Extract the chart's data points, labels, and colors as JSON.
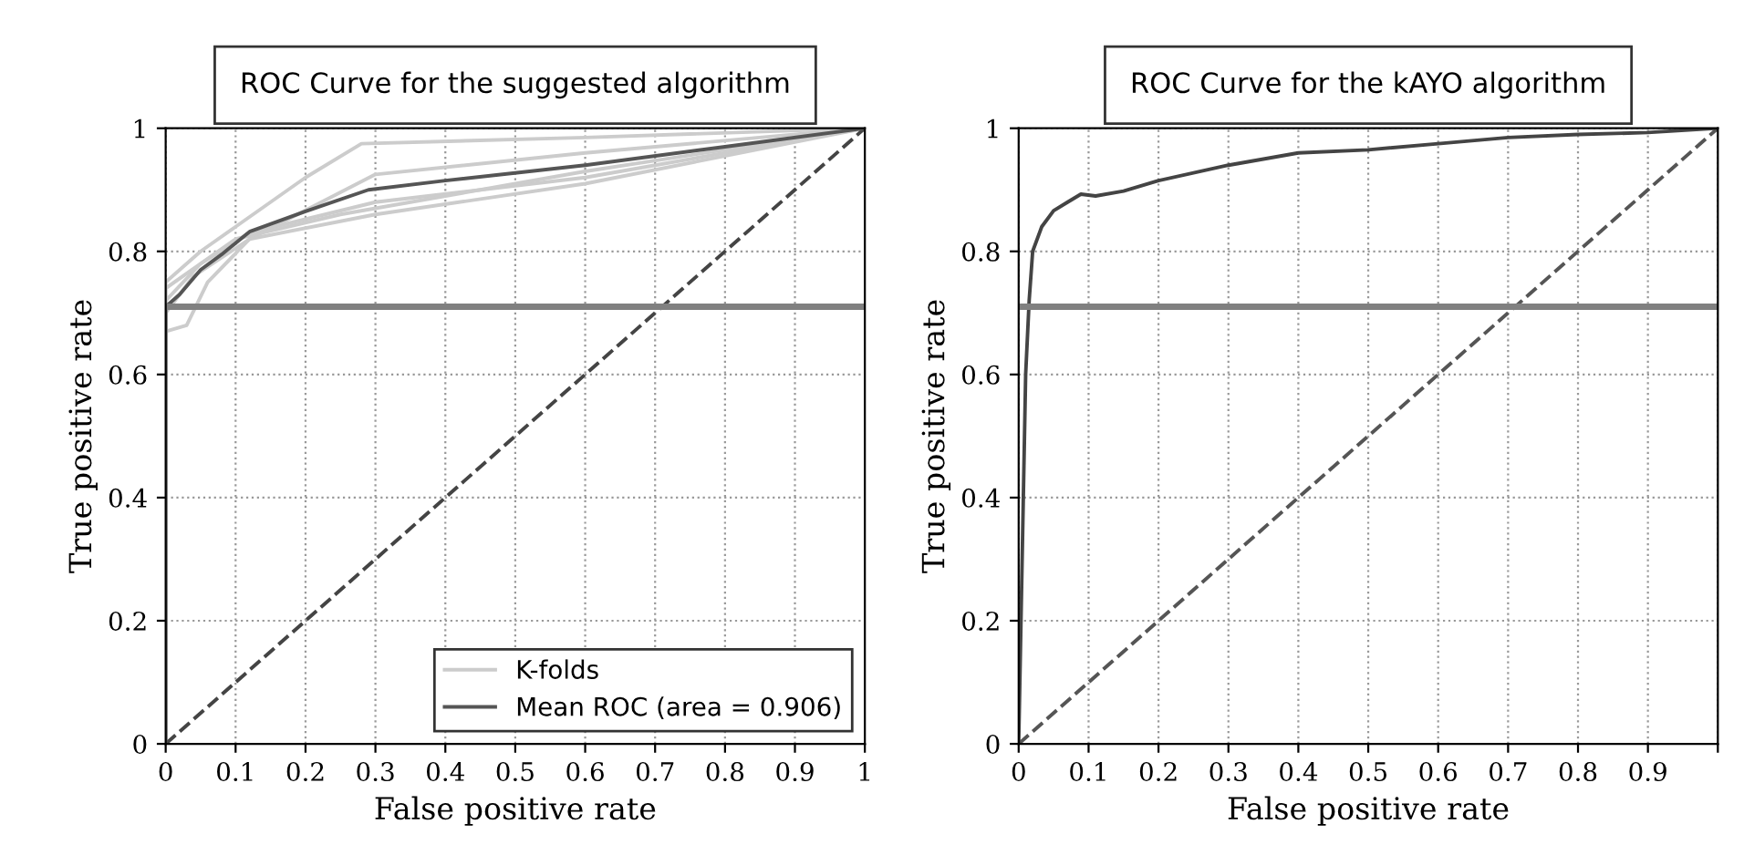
{
  "chart_data": [
    {
      "type": "line",
      "title": "ROC Curve for the suggested algorithm",
      "xlabel": "False positive rate",
      "ylabel": "True positive rate",
      "xlim": [
        0,
        1
      ],
      "ylim": [
        0,
        1
      ],
      "xticks": [
        0,
        0.1,
        0.2,
        0.3,
        0.4,
        0.5,
        0.6,
        0.7,
        0.8,
        0.9,
        1
      ],
      "yticks": [
        0,
        0.2,
        0.4,
        0.6,
        0.8,
        1
      ],
      "grid": true,
      "legend": "bottom right",
      "marker": "none",
      "ref_lines": [
        {
          "axis": "y",
          "value": 0.71,
          "color": "#808080"
        }
      ],
      "series": [
        {
          "name": "K-folds",
          "color": "#cccccc",
          "x": [
            0,
            0,
            0.05,
            0.1,
            0.2,
            0.28,
            0.6,
            1
          ],
          "values": [
            0,
            0.75,
            0.8,
            0.84,
            0.92,
            0.975,
            0.985,
            1
          ]
        },
        {
          "color": "#cccccc",
          "x": [
            0,
            0,
            0.03,
            0.06,
            0.12,
            0.3,
            0.6,
            1
          ],
          "values": [
            0,
            0.67,
            0.68,
            0.75,
            0.82,
            0.925,
            0.96,
            1
          ]
        },
        {
          "color": "#cccccc",
          "x": [
            0,
            0,
            0.05,
            0.12,
            0.3,
            0.6,
            1
          ],
          "values": [
            0,
            0.72,
            0.78,
            0.83,
            0.88,
            0.92,
            1
          ]
        },
        {
          "color": "#cccccc",
          "x": [
            0,
            0,
            0.04,
            0.12,
            0.3,
            0.6,
            1
          ],
          "values": [
            0,
            0.7,
            0.76,
            0.82,
            0.86,
            0.91,
            1
          ]
        },
        {
          "color": "#cccccc",
          "x": [
            0,
            0,
            0.1,
            0.25,
            0.6,
            1
          ],
          "values": [
            0,
            0.74,
            0.82,
            0.86,
            0.93,
            1
          ]
        },
        {
          "color": "#444444",
          "x": [
            0,
            1
          ],
          "values": [
            0,
            1
          ],
          "line_style": "dashed"
        },
        {
          "name": "Mean ROC (area = 0.906)",
          "color": "#555555",
          "x": [
            0,
            0,
            0.02,
            0.05,
            0.08,
            0.12,
            0.2,
            0.29,
            0.4,
            0.6,
            0.8,
            1
          ],
          "values": [
            0,
            0.71,
            0.73,
            0.77,
            0.795,
            0.832,
            0.865,
            0.9,
            0.915,
            0.94,
            0.97,
            1
          ]
        }
      ]
    },
    {
      "type": "line",
      "title": "ROC Curve for the kAYO algorithm",
      "xlabel": "False positive rate",
      "ylabel": "True positive rate",
      "xlim": [
        0,
        1
      ],
      "ylim": [
        0,
        1
      ],
      "xticks": [
        0,
        0.1,
        0.2,
        0.3,
        0.4,
        0.5,
        0.6,
        0.7,
        0.8,
        0.9,
        {
          "value": 1,
          "label": null
        }
      ],
      "yticks": [
        0,
        0.2,
        0.4,
        0.6,
        0.8,
        1
      ],
      "grid": true,
      "marker": "none",
      "ref_lines": [
        {
          "axis": "y",
          "value": 0.71,
          "color": "#808080"
        }
      ],
      "series": [
        {
          "color": "#555555",
          "x": [
            0,
            1
          ],
          "values": [
            0,
            1
          ],
          "line_style": "dashed"
        },
        {
          "color": "#444444",
          "x": [
            0,
            0.005,
            0.01,
            0.015,
            0.02,
            0.033,
            0.05,
            0.07,
            0.089,
            0.11,
            0.15,
            0.2,
            0.3,
            0.4,
            0.5,
            0.6,
            0.7,
            0.8,
            0.9,
            1
          ],
          "values": [
            0,
            0.3,
            0.6,
            0.72,
            0.8,
            0.84,
            0.866,
            0.88,
            0.893,
            0.89,
            0.898,
            0.915,
            0.94,
            0.96,
            0.965,
            0.975,
            0.985,
            0.99,
            0.993,
            1
          ]
        }
      ]
    }
  ]
}
